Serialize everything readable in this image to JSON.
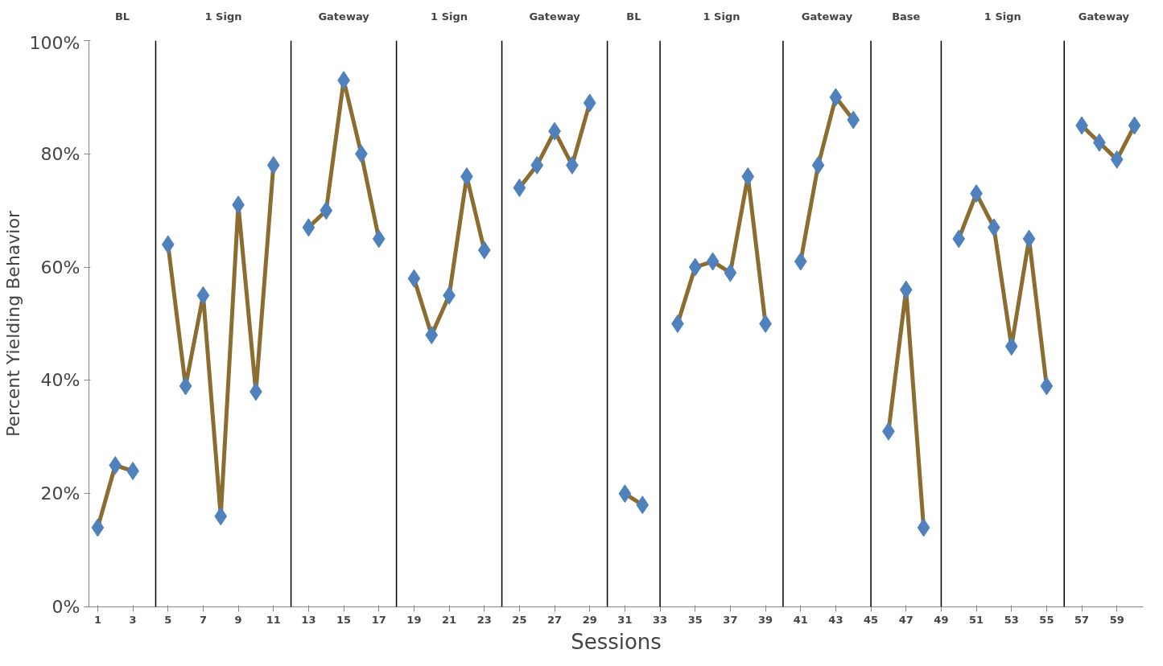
{
  "chart_data": {
    "type": "line",
    "xlabel": "Sessions",
    "ylabel": "Percent Yielding Behavior",
    "annotations": [
      "BL",
      "1 Sign",
      "Gateway",
      "1 Sign",
      "Gateway",
      "BL",
      "1 Sign",
      "Gateway",
      "Base",
      "1 Sign",
      "Gateway"
    ],
    "x": [
      1,
      2,
      3,
      4,
      5,
      6,
      7,
      8,
      9,
      10,
      11,
      12,
      13,
      14,
      15,
      16,
      17,
      18,
      19,
      20,
      21,
      22,
      23,
      24,
      25,
      26,
      27,
      28,
      29,
      30,
      31,
      32,
      33,
      34,
      35,
      36,
      37,
      38,
      39,
      40,
      41,
      42,
      43,
      44,
      45,
      46,
      47,
      48,
      49,
      50,
      51,
      52,
      53,
      54,
      55,
      56,
      57,
      58,
      59,
      60
    ],
    "series": [
      {
        "color": "#8c6d31",
        "colors": [
          "#4f81bd",
          "#4f81bd",
          "#4f81bd",
          "#4f81bd",
          "#4f81bd",
          "#4f81bd",
          "#4f81bd",
          "#4f81bd",
          "#4f81bd",
          "#4f81bd",
          "#4f81bd",
          "#4f81bd",
          "#4f81bd",
          "#4f81bd",
          "#4f81bd",
          "#4f81bd",
          "#4f81bd",
          "#4f81bd",
          "#4f81bd",
          "#4f81bd",
          "#4f81bd",
          "#4f81bd",
          "#4f81bd",
          "#4f81bd",
          "#4f81bd",
          "#4f81bd",
          "#4f81bd",
          "#4f81bd",
          "#4f81bd",
          "#4f81bd",
          "#4f81bd",
          "#4f81bd",
          "#4f81bd",
          "#4f81bd",
          "#4f81bd",
          "#4f81bd",
          "#4f81bd",
          "#4f81bd",
          "#4f81bd",
          "#4f81bd",
          "#4f81bd",
          "#4f81bd",
          "#4f81bd",
          "#4f81bd",
          "#4f81bd",
          "#4f81bd",
          "#4f81bd",
          "#4f81bd",
          "#4f81bd",
          "#4f81bd",
          "#4f81bd",
          "#4f81bd",
          "#4f81bd",
          "#4f81bd",
          "#4f81bd",
          "#4f81bd",
          "#4f81bd",
          "#4f81bd",
          "#4f81bd",
          "#4f81bd"
        ],
        "values": [
          14,
          25,
          24,
          null,
          64,
          39,
          55,
          16,
          71,
          38,
          78,
          null,
          67,
          70,
          93,
          80,
          65,
          null,
          58,
          48,
          55,
          76,
          63,
          null,
          74,
          78,
          84,
          78,
          89,
          null,
          20,
          18,
          null,
          50,
          60,
          61,
          59,
          76,
          50,
          null,
          61,
          78,
          90,
          86,
          null,
          31,
          56,
          14,
          null,
          65,
          73,
          67,
          46,
          65,
          39,
          null,
          85,
          82,
          79,
          85
        ]
      }
    ],
    "marker": "diamond",
    "ref_lines": [
      {
        "axis": "x",
        "value": 4.3
      },
      {
        "axis": "x",
        "value": 12
      },
      {
        "axis": "x",
        "value": 18
      },
      {
        "axis": "x",
        "value": 24
      },
      {
        "axis": "x",
        "value": 30
      },
      {
        "axis": "x",
        "value": 33
      },
      {
        "axis": "x",
        "value": 40
      },
      {
        "axis": "x",
        "value": 45
      },
      {
        "axis": "x",
        "value": 49
      },
      {
        "axis": "x",
        "value": 56
      }
    ],
    "xlim": [
      0.5,
      60.5
    ],
    "xticks": [
      1,
      3,
      5,
      7,
      9,
      11,
      13,
      15,
      17,
      19,
      21,
      23,
      25,
      27,
      29,
      31,
      33,
      35,
      37,
      39,
      41,
      43,
      45,
      47,
      49,
      51,
      53,
      55,
      57,
      59
    ],
    "ylim": [
      0,
      100
    ],
    "yticks": [
      {
        "value": 0,
        "label": "0%"
      },
      {
        "value": 20,
        "label": "20%"
      },
      {
        "value": 40,
        "label": "40%"
      },
      {
        "value": 60,
        "label": "60%"
      },
      {
        "value": 80,
        "label": "80%"
      },
      {
        "value": 100,
        "label": "100%"
      }
    ],
    "grid": false
  }
}
